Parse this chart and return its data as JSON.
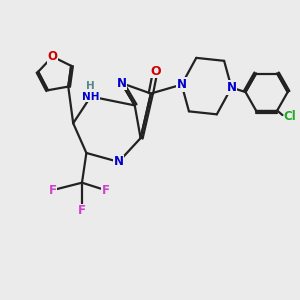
{
  "bg_color": "#ebebeb",
  "bond_color": "#222222",
  "bond_width": 1.6,
  "atom_colors": {
    "N": "#0000cc",
    "O": "#cc0000",
    "F": "#cc44cc",
    "Cl": "#22aa22",
    "H": "#558888",
    "C": "#222222"
  }
}
